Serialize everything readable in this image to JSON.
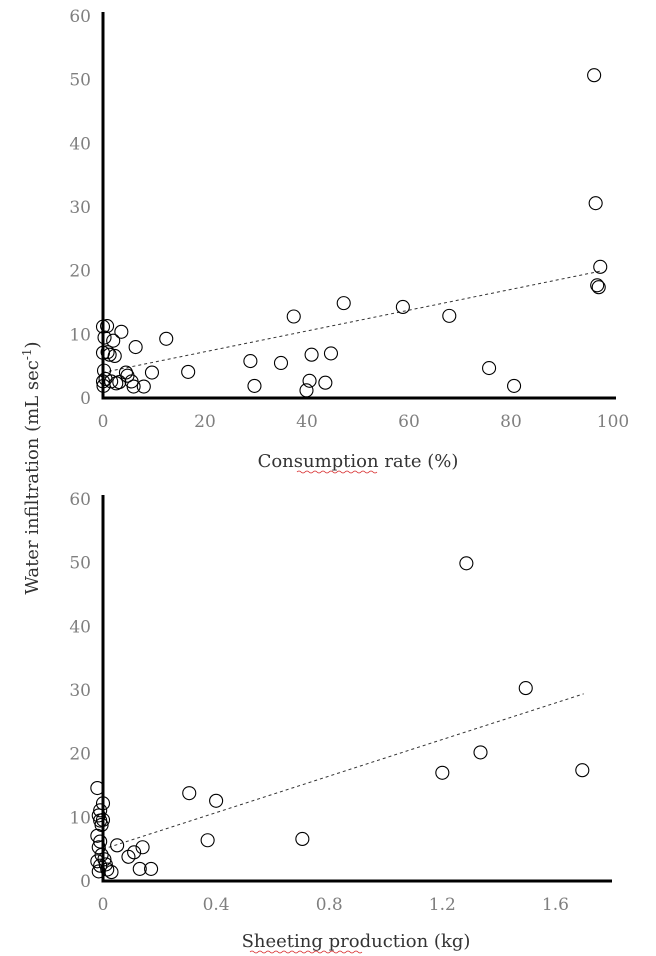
{
  "figure": {
    "shared_ylabel": "Water infiltration (mL sec",
    "shared_ylabel_sup": "-1",
    "shared_ylabel_close": ")"
  },
  "chart_data": [
    {
      "type": "scatter",
      "xlabel": "Consumption rate (%)",
      "ylabel": "Water infiltration (mL sec-1)",
      "xlim": [
        0,
        100
      ],
      "ylim": [
        0,
        60
      ],
      "xticks": [
        "0",
        "20",
        "40",
        "60",
        "80",
        "100"
      ],
      "yticks": [
        "0",
        "10",
        "20",
        "30",
        "40",
        "50",
        "60"
      ],
      "grid": false,
      "marker": "open-circle",
      "trendline": {
        "style": "dashed",
        "x": [
          0,
          98
        ],
        "y": [
          4.0,
          20.0
        ]
      },
      "points": [
        {
          "x": 0,
          "y": 11.2
        },
        {
          "x": 0.3,
          "y": 9.5
        },
        {
          "x": 0,
          "y": 7.1
        },
        {
          "x": 0.2,
          "y": 4.3
        },
        {
          "x": 0,
          "y": 2.6
        },
        {
          "x": 0.1,
          "y": 1.9
        },
        {
          "x": 0.5,
          "y": 3.0
        },
        {
          "x": 0.8,
          "y": 11.3
        },
        {
          "x": 0.9,
          "y": 7.2
        },
        {
          "x": 1.3,
          "y": 6.8
        },
        {
          "x": 1.6,
          "y": 2.6
        },
        {
          "x": 2.0,
          "y": 9.0
        },
        {
          "x": 2.3,
          "y": 6.6
        },
        {
          "x": 2.6,
          "y": 2.3
        },
        {
          "x": 3.2,
          "y": 2.5
        },
        {
          "x": 3.6,
          "y": 10.4
        },
        {
          "x": 4.5,
          "y": 4.0
        },
        {
          "x": 4.8,
          "y": 3.5
        },
        {
          "x": 5.6,
          "y": 2.6
        },
        {
          "x": 6.0,
          "y": 1.8
        },
        {
          "x": 6.4,
          "y": 8.0
        },
        {
          "x": 8.0,
          "y": 1.8
        },
        {
          "x": 9.6,
          "y": 4.0
        },
        {
          "x": 12.4,
          "y": 9.3
        },
        {
          "x": 16.7,
          "y": 4.1
        },
        {
          "x": 28.9,
          "y": 5.8
        },
        {
          "x": 29.7,
          "y": 1.9
        },
        {
          "x": 34.9,
          "y": 5.5
        },
        {
          "x": 37.4,
          "y": 12.8
        },
        {
          "x": 39.9,
          "y": 1.2
        },
        {
          "x": 40.5,
          "y": 2.7
        },
        {
          "x": 40.9,
          "y": 6.8
        },
        {
          "x": 43.6,
          "y": 2.4
        },
        {
          "x": 44.7,
          "y": 7.0
        },
        {
          "x": 47.2,
          "y": 14.9
        },
        {
          "x": 58.8,
          "y": 14.3
        },
        {
          "x": 67.9,
          "y": 12.9
        },
        {
          "x": 75.7,
          "y": 4.7
        },
        {
          "x": 80.6,
          "y": 1.9
        },
        {
          "x": 96.3,
          "y": 50.7
        },
        {
          "x": 96.6,
          "y": 30.6
        },
        {
          "x": 96.9,
          "y": 17.7
        },
        {
          "x": 97.2,
          "y": 17.4
        },
        {
          "x": 97.5,
          "y": 20.6
        }
      ]
    },
    {
      "type": "scatter",
      "xlabel": "Sheeting production (kg)",
      "ylabel": "Water infiltration (mL sec-1)",
      "xlim": [
        0,
        1.8
      ],
      "ylim": [
        0,
        60
      ],
      "xticks": [
        "0",
        "0.4",
        "0.8",
        "1.2",
        "1.6"
      ],
      "yticks": [
        "0",
        "10",
        "20",
        "30",
        "40",
        "50",
        "60"
      ],
      "grid": false,
      "marker": "open-circle",
      "trendline": {
        "style": "dashed",
        "x": [
          0,
          1.7
        ],
        "y": [
          5.0,
          29.4
        ]
      },
      "points": [
        {
          "x": -0.02,
          "y": 14.6
        },
        {
          "x": -0.01,
          "y": 11.1
        },
        {
          "x": -0.015,
          "y": 10.3
        },
        {
          "x": -0.01,
          "y": 9.5
        },
        {
          "x": -0.005,
          "y": 8.8
        },
        {
          "x": -0.02,
          "y": 7.1
        },
        {
          "x": -0.01,
          "y": 6.2
        },
        {
          "x": -0.015,
          "y": 5.3
        },
        {
          "x": -0.005,
          "y": 4.1
        },
        {
          "x": -0.02,
          "y": 3.1
        },
        {
          "x": -0.01,
          "y": 2.4
        },
        {
          "x": -0.015,
          "y": 1.5
        },
        {
          "x": 0.0,
          "y": 12.2
        },
        {
          "x": 0.0,
          "y": 9.6
        },
        {
          "x": 0.005,
          "y": 3.4
        },
        {
          "x": 0.01,
          "y": 2.6
        },
        {
          "x": 0.015,
          "y": 1.8
        },
        {
          "x": 0.03,
          "y": 1.4
        },
        {
          "x": 0.05,
          "y": 5.6
        },
        {
          "x": 0.09,
          "y": 3.8
        },
        {
          "x": 0.11,
          "y": 4.5
        },
        {
          "x": 0.13,
          "y": 1.9
        },
        {
          "x": 0.14,
          "y": 5.3
        },
        {
          "x": 0.17,
          "y": 1.9
        },
        {
          "x": 0.305,
          "y": 13.8
        },
        {
          "x": 0.37,
          "y": 6.4
        },
        {
          "x": 0.4,
          "y": 12.6
        },
        {
          "x": 0.705,
          "y": 6.6
        },
        {
          "x": 1.2,
          "y": 17.0
        },
        {
          "x": 1.285,
          "y": 49.9
        },
        {
          "x": 1.335,
          "y": 20.2
        },
        {
          "x": 1.495,
          "y": 30.3
        },
        {
          "x": 1.695,
          "y": 17.4
        }
      ]
    }
  ]
}
